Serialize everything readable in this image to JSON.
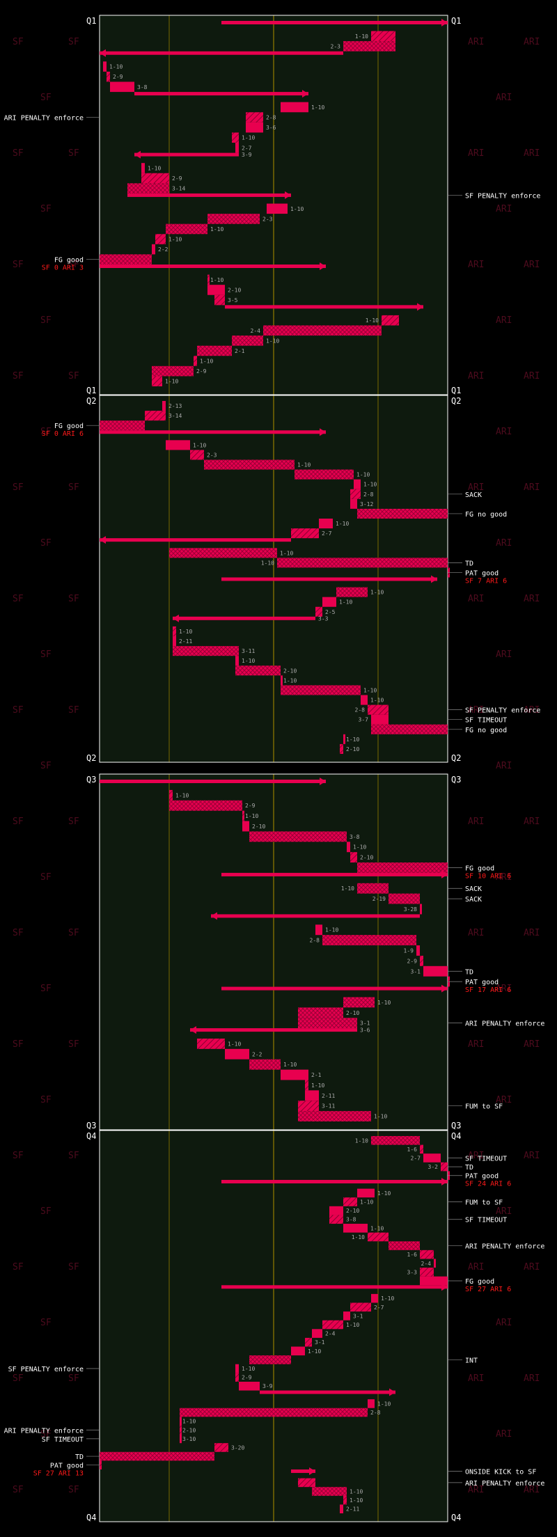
{
  "chart_data": {
    "type": "drive-chart",
    "title": "",
    "colors": {
      "background": "#000000",
      "field": "#0e1a0e",
      "play": "#e8004f",
      "yard_line": "#7a6a00",
      "quarter_line": "#ffffff",
      "label_white": "#ffffff",
      "label_red": "#ff1a1a",
      "down_label": "#aaaaaa",
      "team_watermark": "#4d0b1d"
    },
    "x_axis": {
      "unit": "yards",
      "range": [
        0,
        100
      ],
      "yard_lines": [
        20,
        50,
        80
      ]
    },
    "teams": {
      "left": "SF",
      "right": "ARI"
    },
    "quarters": [
      {
        "label": "Q1",
        "plays": [
          {
            "x0": 35,
            "x1": 100,
            "type": "kick"
          },
          {
            "x0": 78,
            "x1": 85,
            "down": "1-10"
          },
          {
            "x0": 85,
            "x1": 70,
            "down": "2-3"
          },
          {
            "x0": 70,
            "x1": 0,
            "type": "punt"
          },
          {
            "x0": 1,
            "x1": 2,
            "down": "1-10"
          },
          {
            "x0": 2,
            "x1": 3,
            "down": "2-9"
          },
          {
            "x0": 3,
            "x1": 10,
            "down": "3-8"
          },
          {
            "x0": 10,
            "x1": 60,
            "type": "punt"
          },
          {
            "x0": 60,
            "x1": 52,
            "down": "1-10"
          },
          {
            "x0": 47,
            "x1": 42,
            "down": "2-8",
            "label": "ARI PENALTY enforce"
          },
          {
            "x0": 42,
            "x1": 47,
            "down": "3-6"
          },
          {
            "x0": 40,
            "x1": 38,
            "down": "1-10"
          },
          {
            "x0": 39,
            "x1": 40,
            "down": "2-7"
          },
          {
            "x0": 40,
            "x1": 10,
            "down": "3-9",
            "type": "punt"
          },
          {
            "x0": 13,
            "x1": 12,
            "down": "1-10"
          },
          {
            "x0": 12,
            "x1": 20,
            "down": "2-9"
          },
          {
            "x0": 20,
            "x1": 8,
            "down": "3-14"
          },
          {
            "x0": 8,
            "x1": 55,
            "label": "SF PENALTY enforce",
            "type": "punt"
          },
          {
            "x0": 54,
            "x1": 48,
            "down": "1-10"
          },
          {
            "x0": 46,
            "x1": 31,
            "down": "2-3"
          },
          {
            "x0": 31,
            "x1": 19,
            "down": "1-10"
          },
          {
            "x0": 19,
            "x1": 16,
            "down": "1-10"
          },
          {
            "x0": 16,
            "x1": 15,
            "down": "2-2"
          },
          {
            "x0": 15,
            "x1": 0,
            "type": "fg",
            "label": "FG good",
            "score": "SF 0 ARI 3"
          },
          {
            "x0": 0,
            "x1": 65,
            "type": "kick"
          },
          {
            "x0": 31,
            "x1": 31,
            "down": "1-10"
          },
          {
            "x0": 31,
            "x1": 36,
            "down": "2-10"
          },
          {
            "x0": 36,
            "x1": 33,
            "down": "3-5"
          },
          {
            "x0": 36,
            "x1": 93,
            "type": "punt"
          },
          {
            "x0": 86,
            "x1": 81,
            "down": "1-10"
          },
          {
            "x0": 81,
            "x1": 47,
            "down": "2-4"
          },
          {
            "x0": 47,
            "x1": 38,
            "down": "1-10"
          },
          {
            "x0": 38,
            "x1": 28,
            "down": "2-1"
          },
          {
            "x0": 28,
            "x1": 27,
            "down": "1-10"
          },
          {
            "x0": 27,
            "x1": 15,
            "down": "2-9"
          },
          {
            "x0": 15,
            "x1": 18,
            "down": "1-10"
          }
        ]
      },
      {
        "label": "Q2",
        "plays": [
          {
            "x0": 18,
            "x1": 19,
            "down": "2-13"
          },
          {
            "x0": 19,
            "x1": 13,
            "down": "3-14"
          },
          {
            "x0": 13,
            "x1": 0,
            "type": "fg",
            "label": "FG good",
            "score": "SF 0 ARI 6"
          },
          {
            "x0": 0,
            "x1": 65,
            "type": "kick"
          },
          {
            "x0": 19,
            "x1": 26,
            "down": "1-10"
          },
          {
            "x0": 26,
            "x1": 30,
            "down": "2-3"
          },
          {
            "x0": 30,
            "x1": 56,
            "down": "1-10"
          },
          {
            "x0": 56,
            "x1": 73,
            "down": "1-10"
          },
          {
            "x0": 73,
            "x1": 75,
            "down": "1-10"
          },
          {
            "x0": 75,
            "x1": 72,
            "down": "2-8",
            "label": "SACK"
          },
          {
            "x0": 72,
            "x1": 74,
            "down": "3-12"
          },
          {
            "x0": 74,
            "x1": 100,
            "type": "fg",
            "label": "FG no good"
          },
          {
            "x0": 67,
            "x1": 63,
            "down": "1-10"
          },
          {
            "x0": 63,
            "x1": 55,
            "down": "2-7"
          },
          {
            "x0": 55,
            "x1": 0,
            "type": "punt"
          },
          {
            "x0": 20,
            "x1": 51,
            "down": "1-10"
          },
          {
            "x0": 51,
            "x1": 100,
            "down": "1-10",
            "label": "TD",
            "type": "td"
          },
          {
            "x0": 100,
            "x1": 100,
            "label": "PAT good",
            "score": "SF 7 ARI 6"
          },
          {
            "x0": 35,
            "x1": 97,
            "type": "kick"
          },
          {
            "x0": 77,
            "x1": 68,
            "down": "1-10"
          },
          {
            "x0": 68,
            "x1": 64,
            "down": "1-10"
          },
          {
            "x0": 64,
            "x1": 62,
            "down": "2-5"
          },
          {
            "x0": 62,
            "x1": 21,
            "down": "3-3",
            "type": "punt"
          },
          {
            "x0": 21,
            "x1": 22,
            "down": "1-10"
          },
          {
            "x0": 22,
            "x1": 21,
            "down": "2-11"
          },
          {
            "x0": 21,
            "x1": 40,
            "down": "3-11"
          },
          {
            "x0": 40,
            "x1": 39,
            "down": "1-10"
          },
          {
            "x0": 39,
            "x1": 52,
            "down": "2-10"
          },
          {
            "x0": 52,
            "x1": 52,
            "down": "1-10"
          },
          {
            "x0": 52,
            "x1": 75,
            "down": "1-10"
          },
          {
            "x0": 75,
            "x1": 77,
            "down": "1-10"
          },
          {
            "x0": 77,
            "x1": 83,
            "down": "2-8",
            "label": "SF PENALTY enforce"
          },
          {
            "x0": 83,
            "x1": 78,
            "down": "3-7",
            "label": "SF TIMEOUT"
          },
          {
            "x0": 78,
            "x1": 100,
            "type": "fg",
            "label": "FG no good"
          },
          {
            "x0": 70,
            "x1": 70,
            "down": "1-10"
          },
          {
            "x0": 70,
            "x1": 69,
            "down": "2-10"
          }
        ]
      },
      {
        "label": "Q3",
        "plays": [
          {
            "x0": 0,
            "x1": 65,
            "type": "kick"
          },
          {
            "x0": 21,
            "x1": 20,
            "down": "1-10"
          },
          {
            "x0": 20,
            "x1": 41,
            "down": "2-9"
          },
          {
            "x0": 41,
            "x1": 41,
            "down": "1-10"
          },
          {
            "x0": 41,
            "x1": 43,
            "down": "2-10"
          },
          {
            "x0": 43,
            "x1": 71,
            "down": "3-8"
          },
          {
            "x0": 71,
            "x1": 72,
            "down": "1-10"
          },
          {
            "x0": 72,
            "x1": 74,
            "down": "2-10"
          },
          {
            "x0": 74,
            "x1": 100,
            "type": "fg",
            "label": "FG good",
            "score": "SF 10 ARI 6"
          },
          {
            "x0": 35,
            "x1": 100,
            "type": "kick"
          },
          {
            "x0": 83,
            "x1": 74,
            "down": "1-10",
            "label": "SACK"
          },
          {
            "x0": 83,
            "x1": 92,
            "down": "2-19",
            "label": "SACK"
          },
          {
            "x0": 92,
            "x1": 92,
            "down": "3-28"
          },
          {
            "x0": 92,
            "x1": 32,
            "type": "punt"
          },
          {
            "x0": 62,
            "x1": 64,
            "down": "1-10"
          },
          {
            "x0": 64,
            "x1": 91,
            "down": "2-8"
          },
          {
            "x0": 91,
            "x1": 92,
            "down": "1-9"
          },
          {
            "x0": 92,
            "x1": 93,
            "down": "2-9"
          },
          {
            "x0": 93,
            "x1": 100,
            "down": "3-1",
            "label": "TD",
            "type": "td"
          },
          {
            "x0": 100,
            "x1": 100,
            "label": "PAT good",
            "score": "SF 17 ARI 6"
          },
          {
            "x0": 35,
            "x1": 100,
            "type": "kick"
          },
          {
            "x0": 79,
            "x1": 70,
            "down": "1-10"
          },
          {
            "x0": 70,
            "x1": 57,
            "down": "2-10"
          },
          {
            "x0": 57,
            "x1": 74,
            "down": "3-1",
            "label": "ARI PENALTY enforce"
          },
          {
            "x0": 74,
            "x1": 26,
            "down": "3-6",
            "type": "punt"
          },
          {
            "x0": 28,
            "x1": 36,
            "down": "1-10"
          },
          {
            "x0": 36,
            "x1": 43,
            "down": "2-2"
          },
          {
            "x0": 43,
            "x1": 52,
            "down": "1-10"
          },
          {
            "x0": 52,
            "x1": 60,
            "down": "2-1"
          },
          {
            "x0": 60,
            "x1": 59,
            "down": "1-10"
          },
          {
            "x0": 59,
            "x1": 63,
            "down": "2-11"
          },
          {
            "x0": 63,
            "x1": 57,
            "down": "3-11",
            "label": "FUM to SF"
          },
          {
            "x0": 57,
            "x1": 78,
            "down": "1-10"
          }
        ]
      },
      {
        "label": "Q4",
        "plays": [
          {
            "x0": 78,
            "x1": 92,
            "down": "1-10"
          },
          {
            "x0": 92,
            "x1": 93,
            "down": "1-6"
          },
          {
            "x0": 93,
            "x1": 98,
            "down": "2-7",
            "label": "SF TIMEOUT"
          },
          {
            "x0": 98,
            "x1": 100,
            "down": "3-2",
            "label": "TD",
            "type": "td"
          },
          {
            "x0": 100,
            "x1": 100,
            "label": "PAT good",
            "score": "SF 24 ARI 6"
          },
          {
            "x0": 35,
            "x1": 100,
            "type": "kick"
          },
          {
            "x0": 79,
            "x1": 74,
            "down": "1-10"
          },
          {
            "x0": 74,
            "x1": 70,
            "down": "1-10",
            "label": "FUM to SF"
          },
          {
            "x0": 70,
            "x1": 66,
            "down": "2-10"
          },
          {
            "x0": 66,
            "x1": 70,
            "down": "3-8",
            "label": "SF TIMEOUT"
          },
          {
            "x0": 70,
            "x1": 77,
            "down": "1-10"
          },
          {
            "x0": 77,
            "x1": 83,
            "down": "1-10"
          },
          {
            "x0": 83,
            "x1": 92,
            "label": "ARI PENALTY enforce"
          },
          {
            "x0": 92,
            "x1": 96,
            "down": "1-6"
          },
          {
            "x0": 96,
            "x1": 96,
            "down": "2-4"
          },
          {
            "x0": 96,
            "x1": 92,
            "down": "3-3"
          },
          {
            "x0": 92,
            "x1": 100,
            "type": "fg",
            "label": "FG good",
            "score": "SF 27 ARI 6"
          },
          {
            "x0": 35,
            "x1": 100,
            "type": "kick"
          },
          {
            "x0": 80,
            "x1": 78,
            "down": "1-10"
          },
          {
            "x0": 78,
            "x1": 72,
            "down": "2-7"
          },
          {
            "x0": 72,
            "x1": 70,
            "down": "3-1"
          },
          {
            "x0": 70,
            "x1": 64,
            "down": "1-10"
          },
          {
            "x0": 64,
            "x1": 61,
            "down": "2-4"
          },
          {
            "x0": 61,
            "x1": 59,
            "down": "3-1"
          },
          {
            "x0": 59,
            "x1": 55,
            "down": "1-10"
          },
          {
            "x0": 55,
            "x1": 43,
            "label": "INT"
          },
          {
            "x0": 40,
            "x1": 39,
            "down": "1-10",
            "label": "SF PENALTY enforce"
          },
          {
            "x0": 39,
            "x1": 40,
            "down": "2-9"
          },
          {
            "x0": 40,
            "x1": 46,
            "down": "3-9"
          },
          {
            "x0": 46,
            "x1": 85,
            "type": "punt"
          },
          {
            "x0": 79,
            "x1": 77,
            "down": "1-10"
          },
          {
            "x0": 77,
            "x1": 23,
            "down": "2-8"
          },
          {
            "x0": 23,
            "x1": 23,
            "down": "1-10"
          },
          {
            "x0": 23,
            "x1": 23,
            "down": "2-10",
            "label": "ARI PENALTY enforce"
          },
          {
            "x0": 23,
            "x1": 23,
            "down": "3-10",
            "label": "SF TIMEOUT"
          },
          {
            "x0": 37,
            "x1": 33,
            "down": "3-20"
          },
          {
            "x0": 33,
            "x1": 0,
            "label": "TD",
            "type": "td"
          },
          {
            "x0": 0,
            "x1": 0,
            "label": "PAT good",
            "score": "SF 27 ARI 13"
          },
          {
            "x0": 55,
            "x1": 62,
            "label": "ONSIDE KICK to SF",
            "type": "kick"
          },
          {
            "x0": 62,
            "x1": 57,
            "label": "ARI PENALTY enforce"
          },
          {
            "x0": 61,
            "x1": 71,
            "down": "1-10"
          },
          {
            "x0": 71,
            "x1": 70,
            "down": "1-10"
          },
          {
            "x0": 70,
            "x1": 69,
            "down": "2-11"
          }
        ]
      }
    ]
  }
}
